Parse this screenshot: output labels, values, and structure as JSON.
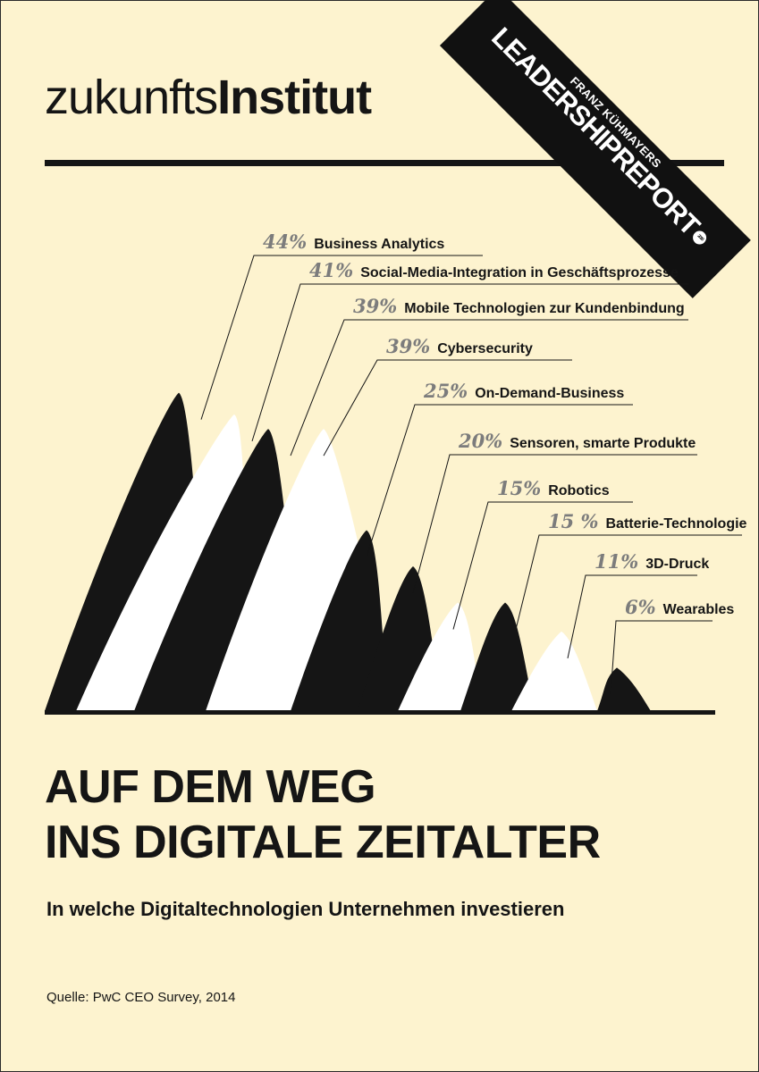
{
  "brand": {
    "logo_light": "zukunfts",
    "logo_bold": "Institut"
  },
  "banner": {
    "subtitle": "FRANZ KÜHMAYERS",
    "title": "LEADERSHIPREPORT",
    "year": "2016"
  },
  "chart_data": {
    "type": "bar",
    "title": "",
    "xlabel": "",
    "ylabel": "",
    "ylim": [
      0,
      50
    ],
    "categories": [
      "Business Analytics",
      "Social-Media-Integration in Geschäftsprozesse",
      "Mobile Technologien zur Kundenbindung",
      "Cybersecurity",
      "On-Demand-Business",
      "Sensoren, smarte Produkte",
      "Robotics",
      "Batterie-Technologie",
      "3D-Druck",
      "Wearables"
    ],
    "values": [
      44,
      41,
      39,
      39,
      25,
      20,
      15,
      15,
      11,
      6
    ],
    "value_labels": [
      "44%",
      "41%",
      "39%",
      "39%",
      "25%",
      "20%",
      "15%",
      "15 %",
      "11%",
      "6%"
    ],
    "colors": [
      "#151515",
      "#ffffff",
      "#151515",
      "#ffffff",
      "#151515",
      "#151515",
      "#ffffff",
      "#151515",
      "#ffffff",
      "#151515"
    ]
  },
  "headline": {
    "line1": "AUF DEM WEG",
    "line2": "INS DIGITALE ZEITALTER"
  },
  "subtitle": "In welche Digitaltechnologien Unternehmen investieren",
  "source": "Quelle: PwC CEO Survey, 2014"
}
